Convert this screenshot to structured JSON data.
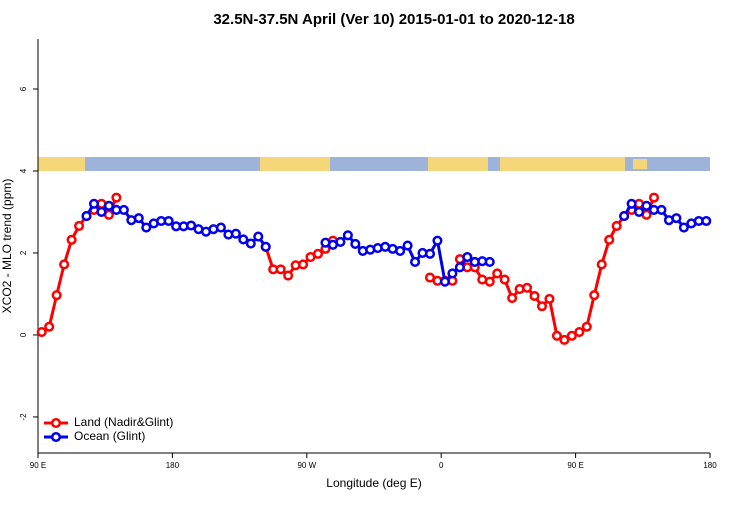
{
  "chart_data": {
    "type": "line",
    "title": "32.5N-37.5N April (Ver 10)   2015-01-01 to 2020-12-18",
    "xlabel": "Longitude (deg E)",
    "ylabel": "XCO2 - MLO trend (ppm)",
    "xlim": [
      90,
      540
    ],
    "xticks": [
      {
        "value": 90,
        "label": "90 E"
      },
      180,
      {
        "value": 270,
        "label": "90 W"
      },
      {
        "value": 360,
        "label": "0"
      },
      {
        "value": 450,
        "label": "90 E"
      },
      {
        "value": 540,
        "label": "180"
      }
    ],
    "ylim": [
      -2.88,
      7.22
    ],
    "yticks": [
      -2,
      0,
      2,
      4,
      6
    ],
    "legend": "bottom-left",
    "series": [
      {
        "name": "Land (Nadir&Glint)",
        "color": "#ff0000",
        "x": [
          92.5,
          97.5,
          102.5,
          107.5,
          112.5,
          117.5,
          122.5,
          127.5,
          132.5,
          137.5,
          142.5,
          147.5,
          242.5,
          247.5,
          252.5,
          257.5,
          262.5,
          267.5,
          272.5,
          277.5,
          282.5,
          287.5,
          292.5,
          352.5,
          357.5,
          362.5,
          367.5,
          372.5,
          377.5,
          382.5,
          387.5,
          392.5,
          397.5,
          402.5,
          407.5,
          412.5,
          417.5,
          422.5,
          427.5,
          432.5,
          437.5,
          442.5,
          447.5,
          452.5,
          457.5,
          462.5,
          467.5,
          472.5,
          477.5,
          482.5,
          487.5,
          492.5,
          497.5,
          502.5
        ],
        "values": [
          0.07,
          0.2,
          0.97,
          1.72,
          2.32,
          2.66,
          2.9,
          3.05,
          3.2,
          2.93,
          3.35,
          null,
          2.15,
          1.6,
          1.6,
          1.45,
          1.7,
          1.72,
          1.9,
          1.98,
          2.1,
          2.3,
          null,
          1.4,
          1.32,
          1.32,
          1.32,
          1.85,
          1.65,
          1.65,
          1.35,
          1.3,
          1.5,
          1.35,
          0.9,
          1.12,
          1.15,
          0.95,
          0.7,
          0.88,
          -0.02,
          -0.12,
          -0.02,
          0.07,
          0.2,
          0.97,
          1.72,
          2.32,
          2.66,
          2.9,
          3.05,
          3.2,
          2.93,
          3.35
        ]
      },
      {
        "name": "Ocean (Glint)",
        "color": "#0000ee",
        "x": [
          122.5,
          127.5,
          132.5,
          137.5,
          142.5,
          147.5,
          152.5,
          157.5,
          162.5,
          167.5,
          172.5,
          177.5,
          182.5,
          187.5,
          192.5,
          197.5,
          202.5,
          207.5,
          212.5,
          217.5,
          222.5,
          227.5,
          232.5,
          237.5,
          242.5,
          247.5,
          282.5,
          287.5,
          292.5,
          297.5,
          302.5,
          307.5,
          312.5,
          317.5,
          322.5,
          327.5,
          332.5,
          337.5,
          342.5,
          347.5,
          352.5,
          357.5,
          362.5,
          367.5,
          372.5,
          377.5,
          382.5,
          387.5,
          392.5,
          397.5,
          482.5,
          487.5,
          492.5,
          497.5,
          502.5,
          507.5,
          512.5,
          517.5,
          522.5,
          527.5,
          532.5,
          537.5
        ],
        "values": [
          2.9,
          3.2,
          3.0,
          3.15,
          3.05,
          3.05,
          2.8,
          2.85,
          2.62,
          2.72,
          2.78,
          2.78,
          2.65,
          2.65,
          2.67,
          2.58,
          2.52,
          2.58,
          2.62,
          2.45,
          2.47,
          2.33,
          2.23,
          2.4,
          2.15,
          null,
          2.25,
          2.2,
          2.27,
          2.43,
          2.22,
          2.05,
          2.08,
          2.12,
          2.15,
          2.1,
          2.05,
          2.18,
          1.78,
          2.0,
          1.98,
          2.3,
          1.3,
          1.5,
          1.65,
          1.9,
          1.78,
          1.8,
          1.78,
          null,
          2.9,
          3.2,
          3.0,
          3.15,
          3.05,
          3.05,
          2.8,
          2.85,
          2.62,
          2.72,
          2.78,
          2.78
        ]
      }
    ]
  }
}
